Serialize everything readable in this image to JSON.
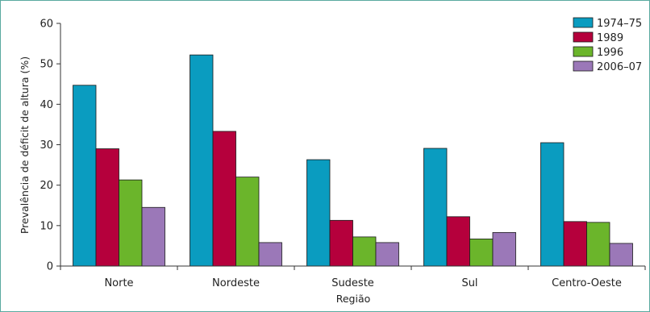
{
  "chart_data": {
    "type": "bar",
    "xlabel": "Região",
    "ylabel": "Prevalência de déficit de altura (%)",
    "ylim": [
      0,
      60
    ],
    "yticks": [
      0,
      10,
      20,
      30,
      40,
      50,
      60
    ],
    "categories": [
      "Norte",
      "Nordeste",
      "Sudeste",
      "Sul",
      "Centro-Oeste"
    ],
    "series": [
      {
        "name": "1974–75",
        "color": "#0a9cc0",
        "values": [
          44.7,
          52.2,
          26.3,
          29.1,
          30.5
        ]
      },
      {
        "name": "1989",
        "color": "#b5003c",
        "values": [
          29.0,
          33.3,
          11.3,
          12.2,
          11.0
        ]
      },
      {
        "name": "1996",
        "color": "#6bb52b",
        "values": [
          21.3,
          22.0,
          7.2,
          6.7,
          10.8
        ]
      },
      {
        "name": "2006–07",
        "color": "#9b78b8",
        "values": [
          14.5,
          5.8,
          5.8,
          8.3,
          5.6
        ]
      }
    ],
    "legend_position": "top-right",
    "grid": false
  }
}
